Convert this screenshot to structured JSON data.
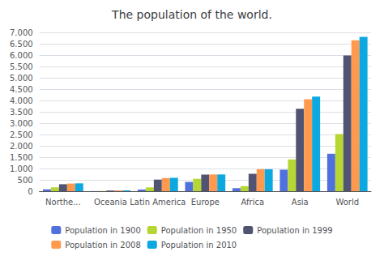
{
  "chart_data": {
    "type": "bar",
    "title": "The population of the world.",
    "categories": [
      "Northe...",
      "Oceania",
      "Latin America",
      "Europe",
      "Africa",
      "Asia",
      "World"
    ],
    "series": [
      {
        "name": "Population in 1900",
        "values": [
          82,
          6,
          74,
          408,
          133,
          947,
          1650
        ]
      },
      {
        "name": "Population in 1950",
        "values": [
          172,
          13,
          167,
          547,
          221,
          1402,
          2519
        ]
      },
      {
        "name": "Population in 1999",
        "values": [
          307,
          30,
          511,
          729,
          767,
          3634,
          5978
        ]
      },
      {
        "name": "Population in 2008",
        "values": [
          337,
          34,
          577,
          738,
          967,
          4054,
          6650
        ]
      },
      {
        "name": "Population in 2010",
        "values": [
          345,
          36,
          590,
          738,
          967,
          4167,
          6800
        ]
      }
    ],
    "ylim": [
      0,
      7000
    ],
    "yticks": [
      0,
      500,
      {
        "value": 1000,
        "label": "1.000"
      },
      {
        "value": 1500,
        "label": "1.500"
      },
      {
        "value": 2000,
        "label": "2.000"
      },
      {
        "value": 2500,
        "label": "2.500"
      },
      {
        "value": 3000,
        "label": "3.000"
      },
      {
        "value": 3500,
        "label": "3.500"
      },
      {
        "value": 4000,
        "label": "4.000"
      },
      {
        "value": 4500,
        "label": "4.500"
      },
      {
        "value": 5000,
        "label": "5.000"
      },
      {
        "value": 5500,
        "label": "5.500"
      },
      {
        "value": 6000,
        "label": "6.000"
      },
      {
        "value": 6500,
        "label": "6.500"
      },
      {
        "value": 7000,
        "label": "7.000"
      }
    ],
    "grid": true,
    "legend": "bottom"
  }
}
